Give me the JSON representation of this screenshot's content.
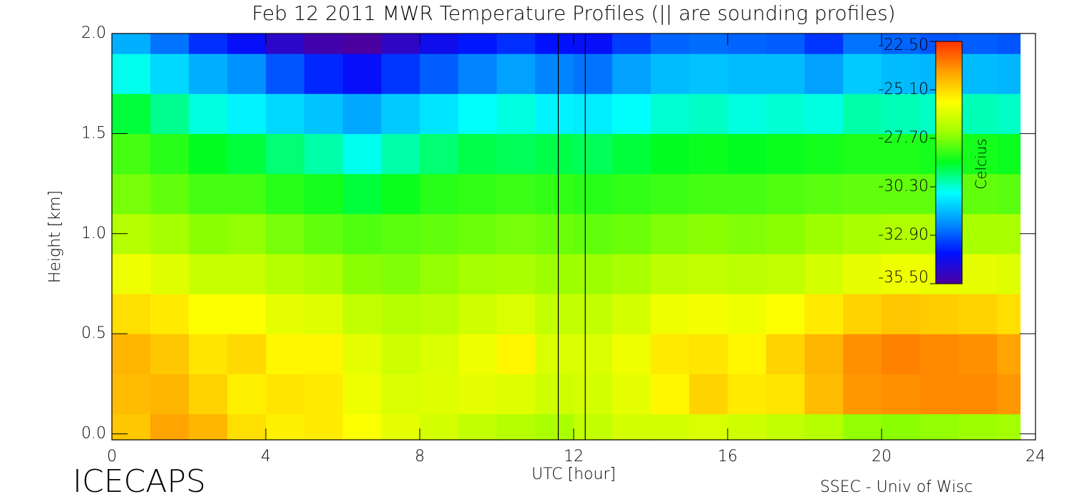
{
  "chart_data": {
    "type": "heatmap",
    "title": "Feb 12 2011 MWR Temperature Profiles (|| are sounding profiles)",
    "xlabel": "UTC [hour]",
    "ylabel": "Height [km]",
    "footer_left": "ICECAPS",
    "footer_right": "SSEC - Univ of Wisc",
    "colorbar_label": "Celcius",
    "xlim": [
      0,
      24
    ],
    "xticks": [
      0,
      4,
      8,
      12,
      16,
      20,
      24
    ],
    "ylim": [
      -0.03,
      2.0
    ],
    "yticks": [
      {
        "value": 0,
        "label": "0.0"
      },
      0.5,
      {
        "value": 1,
        "label": "1.0"
      },
      1.5,
      {
        "value": 2,
        "label": "2.0"
      }
    ],
    "zlim": [
      -35.5,
      -22.5
    ],
    "zticks": [
      {
        "value": -22.5,
        "label": "-22.50"
      },
      {
        "value": -25.1,
        "label": "-25.10"
      },
      {
        "value": -27.7,
        "label": "-27.70"
      },
      {
        "value": -30.3,
        "label": "-30.30"
      },
      {
        "value": -32.9,
        "label": "-32.90"
      },
      {
        "value": -35.5,
        "label": "-35.50"
      }
    ],
    "colormap": [
      "#4b00a0",
      "#0010ff",
      "#0090ff",
      "#00ffff",
      "#00ff20",
      "#a0ff00",
      "#ffff00",
      "#ffa000",
      "#ff3000"
    ],
    "sounding_lines_x": [
      11.6,
      12.3
    ],
    "x": [
      0.5,
      1.5,
      2.5,
      3.5,
      4.5,
      5.5,
      6.5,
      7.5,
      8.5,
      9.5,
      10.5,
      11.5,
      12.5,
      13.5,
      14.5,
      15.5,
      16.5,
      17.5,
      18.5,
      19.5,
      20.5,
      21.5,
      22.5,
      23.5
    ],
    "y": [
      0,
      0.2,
      0.4,
      0.6,
      0.8,
      1,
      1.2,
      1.4,
      1.6,
      1.8,
      2
    ],
    "z": [
      [
        -24.8,
        -24.2,
        -24.5,
        -25.2,
        -25.5,
        -25.4,
        -25.8,
        -26.2,
        -26.5,
        -26.8,
        -27.0,
        -27.2,
        -26.8,
        -26.5,
        -26.5,
        -26.4,
        -26.6,
        -26.8,
        -27.0,
        -27.5,
        -27.6,
        -27.5,
        -27.4,
        -27.3
      ],
      [
        -24.6,
        -24.5,
        -25.0,
        -25.5,
        -25.3,
        -25.4,
        -26.0,
        -26.4,
        -26.3,
        -26.2,
        -26.3,
        -26.6,
        -26.5,
        -26.2,
        -25.6,
        -25.0,
        -25.4,
        -25.3,
        -24.6,
        -24.0,
        -23.9,
        -23.8,
        -23.8,
        -24.0
      ],
      [
        -24.5,
        -24.8,
        -25.3,
        -25.1,
        -25.6,
        -25.6,
        -26.2,
        -26.6,
        -26.4,
        -26.0,
        -25.6,
        -26.4,
        -26.4,
        -26.0,
        -25.4,
        -25.3,
        -25.6,
        -25.0,
        -24.5,
        -23.9,
        -23.7,
        -23.8,
        -23.9,
        -24.2
      ],
      [
        -25.2,
        -25.4,
        -25.8,
        -25.8,
        -26.2,
        -26.3,
        -26.8,
        -27.0,
        -26.9,
        -26.6,
        -26.4,
        -26.8,
        -26.8,
        -26.5,
        -26.0,
        -25.9,
        -26.0,
        -25.8,
        -25.4,
        -25.0,
        -24.8,
        -24.9,
        -25.0,
        -25.2
      ],
      [
        -26.0,
        -26.3,
        -26.7,
        -26.7,
        -27.0,
        -27.2,
        -27.6,
        -27.7,
        -27.5,
        -27.3,
        -27.2,
        -27.4,
        -27.4,
        -27.2,
        -26.9,
        -26.8,
        -26.9,
        -26.8,
        -26.5,
        -26.2,
        -26.0,
        -26.1,
        -26.2,
        -26.3
      ],
      [
        -27.0,
        -27.3,
        -27.6,
        -27.5,
        -27.8,
        -28.0,
        -28.2,
        -28.1,
        -28.0,
        -27.9,
        -27.8,
        -27.9,
        -28.0,
        -27.9,
        -27.7,
        -27.6,
        -27.7,
        -27.6,
        -27.4,
        -27.2,
        -27.1,
        -27.1,
        -27.2,
        -27.2
      ],
      [
        -27.8,
        -28.0,
        -28.3,
        -28.3,
        -28.6,
        -28.8,
        -29.2,
        -28.9,
        -28.6,
        -28.5,
        -28.4,
        -28.5,
        -28.6,
        -28.5,
        -28.4,
        -28.3,
        -28.3,
        -28.2,
        -28.1,
        -28.0,
        -28.0,
        -28.0,
        -28.0,
        -28.1
      ],
      [
        -28.3,
        -28.6,
        -29.0,
        -29.2,
        -29.6,
        -30.0,
        -30.5,
        -30.0,
        -29.6,
        -29.3,
        -29.4,
        -29.3,
        -29.4,
        -29.2,
        -29.0,
        -28.9,
        -29.0,
        -28.9,
        -28.8,
        -28.7,
        -28.7,
        -28.8,
        -28.8,
        -28.9
      ],
      [
        -29.2,
        -29.8,
        -30.4,
        -30.8,
        -31.2,
        -31.5,
        -31.9,
        -31.4,
        -31.0,
        -30.6,
        -30.4,
        -30.8,
        -30.9,
        -30.6,
        -30.3,
        -30.2,
        -30.4,
        -30.3,
        -30.4,
        -30.0,
        -30.1,
        -30.2,
        -30.1,
        -30.2
      ],
      [
        -30.5,
        -31.2,
        -31.8,
        -32.2,
        -33.0,
        -33.6,
        -34.0,
        -33.4,
        -32.9,
        -32.4,
        -32.0,
        -32.4,
        -32.6,
        -32.0,
        -31.6,
        -31.5,
        -31.6,
        -31.6,
        -32.0,
        -31.4,
        -31.6,
        -31.7,
        -31.6,
        -31.7
      ],
      [
        -31.8,
        -32.6,
        -33.5,
        -34.0,
        -34.8,
        -35.3,
        -35.5,
        -34.9,
        -34.2,
        -33.8,
        -33.5,
        -33.9,
        -34.0,
        -33.3,
        -32.8,
        -32.7,
        -32.8,
        -32.9,
        -33.4,
        -32.6,
        -32.8,
        -33.0,
        -32.9,
        -33.0
      ]
    ]
  }
}
